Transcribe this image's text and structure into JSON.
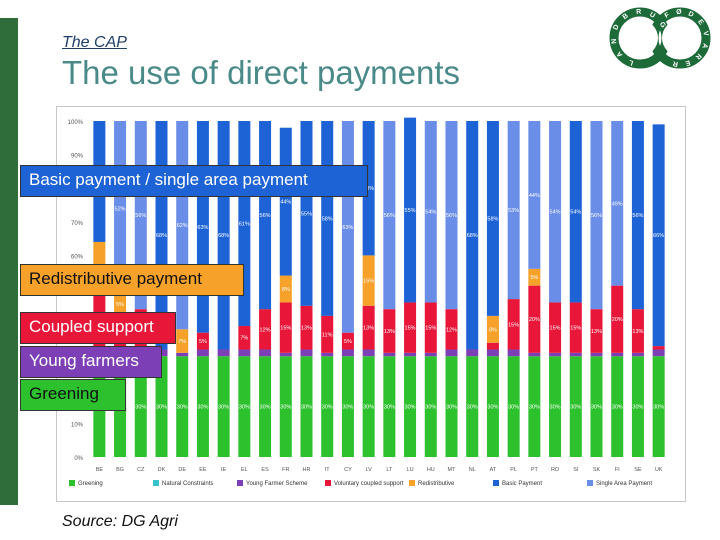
{
  "slide": {
    "kicker": "The CAP",
    "title": "The use of direct payments",
    "source": "Source: DG Agri"
  },
  "logo": {
    "text_left": "LANDBRUG",
    "text_right": "FØDEVARER",
    "color": "#1e6b3a"
  },
  "callouts": {
    "basic": "Basic payment / single area payment",
    "redistributive": "Redistributive payment",
    "coupled": "Coupled support",
    "young": "Young farmers",
    "greening": "Greening"
  },
  "colors": {
    "greening": "#2ec12e",
    "natural": "#35c2c9",
    "young": "#7d3fb5",
    "coupled": "#e8173a",
    "redistributive": "#f5a12a",
    "basic": "#1e63d6",
    "single": "#6a8de8",
    "accent_title": "#4a8a88",
    "left_bar": "#2f6e3a"
  },
  "chart_data": {
    "type": "bar",
    "stacked": true,
    "ylim": [
      0,
      100
    ],
    "yticks": [
      "0%",
      "10%",
      "20%",
      "30%",
      "40%",
      "50%",
      "60%",
      "70%",
      "80%",
      "90%",
      "100%"
    ],
    "categories": [
      "BE",
      "BG",
      "CZ",
      "DK",
      "DE",
      "EE",
      "IE",
      "EL",
      "ES",
      "FR",
      "HR",
      "IT",
      "CY",
      "LV",
      "LT",
      "LU",
      "HU",
      "MT",
      "NL",
      "AT",
      "PL",
      "PT",
      "RO",
      "SI",
      "SK",
      "FI",
      "SE",
      "UK"
    ],
    "series": [
      {
        "name": "Greening",
        "key": "greening",
        "values": [
          30,
          30,
          30,
          30,
          30,
          30,
          30,
          30,
          30,
          30,
          30,
          30,
          30,
          30,
          30,
          30,
          30,
          30,
          30,
          30,
          30,
          30,
          30,
          30,
          30,
          30,
          30,
          30
        ]
      },
      {
        "name": "Natural Constraints",
        "key": "natural",
        "values": [
          0,
          0,
          0,
          0,
          0,
          0,
          0,
          0,
          0,
          0,
          0,
          0,
          0,
          0,
          0,
          0,
          0,
          0,
          0,
          0,
          0,
          0,
          0,
          0,
          0,
          0,
          0,
          0
        ]
      },
      {
        "name": "Young Farmer Scheme",
        "key": "young",
        "values": [
          2,
          1,
          1,
          2,
          1,
          2,
          2,
          2,
          2,
          1,
          2,
          1,
          2,
          2,
          1,
          1,
          1,
          2,
          2,
          2,
          2,
          1,
          1,
          1,
          1,
          1,
          1,
          2
        ]
      },
      {
        "name": "Voluntary coupled support",
        "key": "coupled",
        "values": [
          17,
          12,
          13,
          0,
          0,
          5,
          0,
          7,
          12,
          15,
          13,
          11,
          5,
          13,
          13,
          15,
          15,
          12,
          0,
          2,
          15,
          20,
          15,
          15,
          13,
          20,
          13,
          1
        ]
      },
      {
        "name": "Redistributive",
        "key": "redistributive",
        "values": [
          15,
          5,
          0,
          0,
          7,
          0,
          0,
          0,
          0,
          8,
          0,
          0,
          0,
          15,
          0,
          0,
          0,
          0,
          0,
          8,
          0,
          5,
          0,
          0,
          0,
          0,
          0,
          0
        ]
      },
      {
        "name": "Basic Payment",
        "key": "basic",
        "values": [
          36,
          0,
          0,
          68,
          0,
          63,
          68,
          61,
          56,
          44,
          55,
          58,
          0,
          40,
          0,
          55,
          0,
          0,
          68,
          58,
          0,
          0,
          0,
          54,
          0,
          0,
          56,
          66
        ]
      },
      {
        "name": "Single Area Payment",
        "key": "single",
        "values": [
          0,
          52,
          56,
          0,
          62,
          0,
          0,
          0,
          0,
          0,
          0,
          0,
          63,
          0,
          56,
          0,
          54,
          56,
          0,
          0,
          53,
          44,
          54,
          0,
          56,
          49,
          0,
          0
        ]
      }
    ],
    "legend": [
      "Greening",
      "Natural Constraints",
      "Young Farmer Scheme",
      "Voluntary coupled support",
      "Redistributive",
      "Basic Payment",
      "Single Area Payment"
    ],
    "legend_position": "bottom",
    "grid": false
  }
}
